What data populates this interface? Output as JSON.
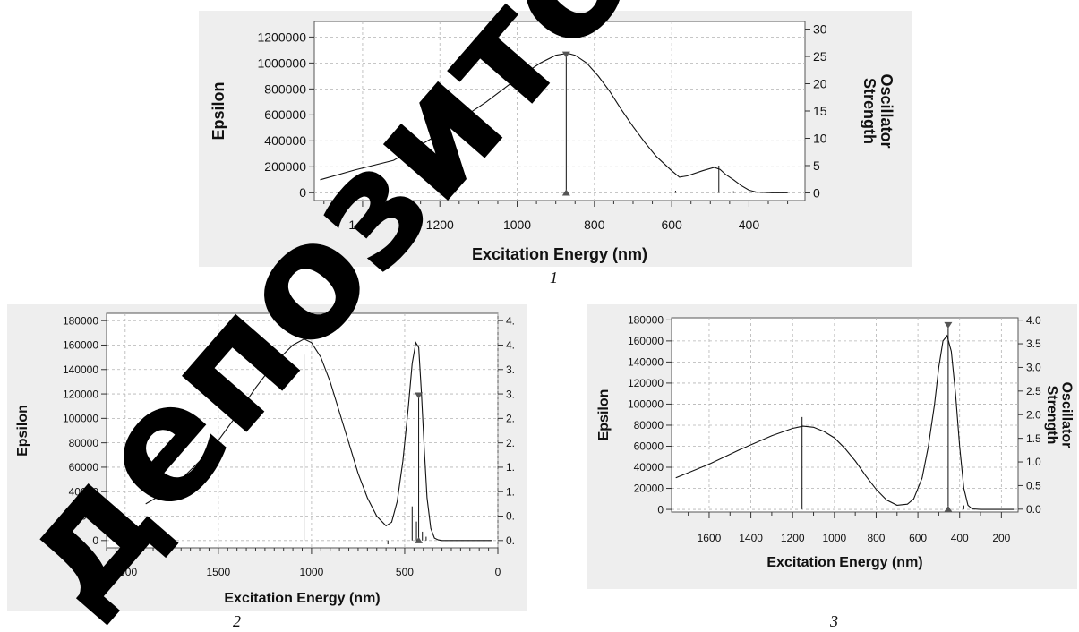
{
  "chart_data": [
    {
      "id": "chart1",
      "type": "line",
      "caption": "1",
      "xlabel": "Excitation Energy (nm)",
      "ylabel": "Epsilon",
      "y2label": "Oscillator Strength",
      "x_reversed": true,
      "xlim": [
        1525,
        255
      ],
      "ylim": [
        -60000,
        1320000
      ],
      "y2lim": [
        -1.4,
        31.4
      ],
      "xticks": [
        1400,
        1200,
        1000,
        800,
        600,
        400
      ],
      "yticks": [
        0,
        200000,
        400000,
        600000,
        800000,
        1000000,
        1200000
      ],
      "y2ticks": [
        0,
        5,
        10,
        15,
        20,
        25,
        30
      ],
      "x_minor_step": 50,
      "grid": true,
      "x": [
        1510,
        1420,
        1320,
        1220,
        1150,
        1080,
        1000,
        940,
        900,
        870,
        850,
        820,
        790,
        760,
        730,
        700,
        670,
        640,
        600,
        580,
        560,
        520,
        490,
        475,
        460,
        440,
        420,
        400,
        380,
        360,
        340,
        300
      ],
      "y": [
        100000,
        175000,
        250000,
        420000,
        560000,
        700000,
        880000,
        1000000,
        1060000,
        1075000,
        1060000,
        1000000,
        900000,
        780000,
        640000,
        510000,
        390000,
        280000,
        170000,
        120000,
        130000,
        170000,
        195000,
        180000,
        140000,
        100000,
        55000,
        20000,
        5000,
        2000,
        0,
        0
      ],
      "sticks": [
        {
          "x": 873,
          "f": 25.4,
          "marker": true
        },
        {
          "x": 478,
          "f": 5.0
        },
        {
          "x": 590,
          "f": 0.4
        },
        {
          "x": 440,
          "f": 0.3
        },
        {
          "x": 420,
          "f": 0.3
        }
      ]
    },
    {
      "id": "chart2",
      "type": "line",
      "caption": "2",
      "xlabel": "Excitation Energy (nm)",
      "ylabel": "Epsilon",
      "y2label": "",
      "x_reversed": true,
      "xlim": [
        2100,
        0
      ],
      "ylim": [
        -6000,
        186000
      ],
      "y2lim": [
        -0.02,
        4.62
      ],
      "xticks": [
        2000,
        1500,
        1000,
        500,
        0
      ],
      "yticks": [
        0,
        20000,
        40000,
        60000,
        80000,
        100000,
        120000,
        140000,
        160000,
        180000
      ],
      "y2tick_labels": [
        "0.",
        "0.",
        "1.",
        "1.",
        "2.",
        "2.",
        "3.",
        "3.",
        "4.",
        "4."
      ],
      "x_minor_step": 50,
      "grid": true,
      "x": [
        1890,
        1800,
        1700,
        1600,
        1500,
        1400,
        1300,
        1200,
        1100,
        1040,
        1000,
        950,
        900,
        850,
        800,
        750,
        700,
        650,
        600,
        570,
        540,
        510,
        480,
        460,
        440,
        425,
        410,
        395,
        380,
        360,
        340,
        320,
        300,
        250,
        150,
        30
      ],
      "y": [
        30000,
        38000,
        50000,
        65000,
        82000,
        103000,
        125000,
        145000,
        160000,
        165000,
        162000,
        150000,
        130000,
        105000,
        80000,
        55000,
        35000,
        20000,
        12000,
        15000,
        32000,
        65000,
        110000,
        145000,
        162000,
        158000,
        120000,
        75000,
        35000,
        10000,
        2000,
        500,
        0,
        0,
        0,
        0
      ],
      "sticks": [
        {
          "x": 1040,
          "f": 3.8
        },
        {
          "x": 460,
          "f": 0.8
        },
        {
          "x": 437,
          "f": 0.5
        },
        {
          "x": 425,
          "f": 3.0,
          "marker": true
        },
        {
          "x": 405,
          "f": 0.3
        },
        {
          "x": 385,
          "f": 0.2
        },
        {
          "x": 590,
          "f": 0.05
        }
      ]
    },
    {
      "id": "chart3",
      "type": "line",
      "caption": "3",
      "xlabel": "Excitation Energy (nm)",
      "ylabel": "Epsilon",
      "y2label": "Oscillator Strength",
      "x_reversed": true,
      "xlim": [
        1780,
        120
      ],
      "ylim": [
        -2500,
        182000
      ],
      "y2lim": [
        -0.06,
        4.05
      ],
      "xticks": [
        1600,
        1400,
        1200,
        1000,
        800,
        600,
        400,
        200
      ],
      "yticks": [
        0,
        20000,
        40000,
        60000,
        80000,
        100000,
        120000,
        140000,
        160000,
        180000
      ],
      "y2ticks": [
        "0.0",
        "0.5",
        "1.0",
        "1.5",
        "2.0",
        "2.5",
        "3.0",
        "3.5",
        "4.0"
      ],
      "x_minor_step": 100,
      "grid": true,
      "x": [
        1760,
        1600,
        1450,
        1300,
        1200,
        1150,
        1100,
        1050,
        1000,
        950,
        900,
        850,
        800,
        750,
        700,
        650,
        620,
        580,
        550,
        520,
        500,
        480,
        460,
        440,
        420,
        400,
        380,
        360,
        340,
        300,
        200,
        140
      ],
      "y": [
        30000,
        43000,
        57000,
        70000,
        77000,
        79000,
        78000,
        74000,
        68000,
        58000,
        46000,
        32000,
        19000,
        9000,
        4000,
        5000,
        10000,
        30000,
        60000,
        100000,
        135000,
        160000,
        165000,
        150000,
        110000,
        60000,
        20000,
        4000,
        500,
        0,
        0,
        0
      ],
      "sticks": [
        {
          "x": 1155,
          "f": 1.95
        },
        {
          "x": 455,
          "f": 3.9,
          "marker": true
        },
        {
          "x": 380,
          "f": 0.08
        }
      ]
    }
  ],
  "watermark": "депозиторий"
}
